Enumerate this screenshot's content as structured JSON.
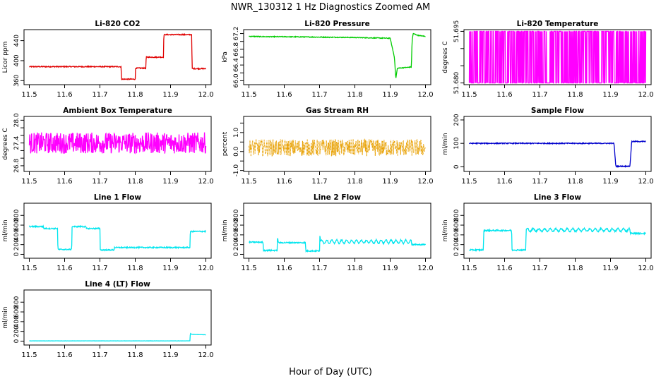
{
  "figure": {
    "title": "NWR_130312  1 Hz Diagnostics Zoomed AM",
    "xlabel": "Hour of Day (UTC)"
  },
  "chart_data": [
    {
      "id": "co2",
      "type": "line",
      "title": "Li-820 CO2",
      "xlabel": "",
      "ylabel": "Licor ppm",
      "color": "#e00000",
      "xlim": [
        11.485,
        12.015
      ],
      "ylim": [
        352,
        462
      ],
      "xticks": [
        11.5,
        11.6,
        11.7,
        11.8,
        11.9,
        12.0
      ],
      "yticks": [
        360,
        400,
        440
      ],
      "x": [
        11.5,
        11.76,
        11.761,
        11.8,
        11.801,
        11.83,
        11.831,
        11.88,
        11.881,
        11.96,
        11.961,
        12.0
      ],
      "y": [
        388,
        388,
        363,
        363,
        385,
        385,
        407,
        407,
        452,
        452,
        384,
        384
      ],
      "noise": 1
    },
    {
      "id": "pressure",
      "type": "line",
      "title": "Li-820 Pressure",
      "xlabel": "",
      "ylabel": "kPa",
      "color": "#00cc00",
      "xlim": [
        11.485,
        12.015
      ],
      "ylim": [
        65.9,
        67.3
      ],
      "xticks": [
        11.5,
        11.6,
        11.7,
        11.8,
        11.9,
        12.0
      ],
      "yticks": [
        66.0,
        66.2,
        66.4,
        66.6,
        66.8,
        67.0,
        67.2
      ],
      "ytick_labels": [
        "66.0",
        "",
        "66.4",
        "",
        "66.8",
        "",
        "67.2"
      ],
      "x": [
        11.5,
        11.55,
        11.6,
        11.7,
        11.8,
        11.9,
        11.912,
        11.916,
        11.92,
        11.922,
        11.95,
        11.96,
        11.962,
        11.965,
        11.98,
        12.0
      ],
      "y": [
        67.13,
        67.12,
        67.12,
        67.11,
        67.1,
        67.08,
        66.6,
        66.05,
        66.3,
        66.32,
        66.34,
        66.35,
        67.0,
        67.2,
        67.15,
        67.13
      ],
      "noise": 0.01
    },
    {
      "id": "li820temp",
      "type": "line",
      "title": "Li-820 Temperature",
      "xlabel": "",
      "ylabel": "degrees C",
      "color": "#ff00ff",
      "xlim": [
        11.485,
        12.015
      ],
      "ylim": [
        51.6795,
        51.6955
      ],
      "xticks": [
        11.5,
        11.6,
        11.7,
        11.8,
        11.9,
        12.0
      ],
      "yticks": [
        51.68,
        51.685,
        51.69,
        51.695
      ],
      "ytick_labels": [
        "51.680",
        "",
        "",
        "51.695"
      ],
      "x": [
        11.5,
        12.0
      ],
      "y": [
        51.68,
        51.695
      ],
      "pattern": "binary"
    },
    {
      "id": "ambient",
      "type": "line",
      "title": "Ambient Box Temperature",
      "xlabel": "",
      "ylabel": "degrees C",
      "color": "#ff00ff",
      "xlim": [
        11.485,
        12.015
      ],
      "ylim": [
        26.65,
        28.1
      ],
      "xticks": [
        11.5,
        11.6,
        11.7,
        11.8,
        11.9,
        12.0
      ],
      "yticks": [
        26.8,
        27.0,
        27.2,
        27.4,
        27.6,
        27.8,
        28.0
      ],
      "ytick_labels": [
        "26.8",
        "",
        "",
        "27.4",
        "",
        "",
        "28.0"
      ],
      "x": [
        11.5,
        12.0
      ],
      "y": [
        27.4,
        27.4
      ],
      "noise": 0.28
    },
    {
      "id": "rh",
      "type": "line",
      "title": "Gas Stream RH",
      "xlabel": "",
      "ylabel": "percent",
      "color": "#e8a000",
      "xlim": [
        11.485,
        12.015
      ],
      "ylim": [
        -1.05,
        1.85
      ],
      "xticks": [
        11.5,
        11.6,
        11.7,
        11.8,
        11.9,
        12.0
      ],
      "yticks": [
        -1.0,
        -0.5,
        0.0,
        0.5,
        1.0,
        1.5
      ],
      "ytick_labels": [
        "-1.0",
        "",
        "0.0",
        "",
        "1.0",
        ""
      ],
      "x": [
        11.5,
        12.0
      ],
      "y": [
        0.2,
        0.2
      ],
      "noise": 0.45
    },
    {
      "id": "sample",
      "type": "line",
      "title": "Sample Flow",
      "xlabel": "",
      "ylabel": "ml/min",
      "color": "#0000cc",
      "xlim": [
        11.485,
        12.015
      ],
      "ylim": [
        -20,
        215
      ],
      "xticks": [
        11.5,
        11.6,
        11.7,
        11.8,
        11.9,
        12.0
      ],
      "yticks": [
        0,
        100,
        200
      ],
      "x": [
        11.5,
        11.91,
        11.915,
        11.955,
        11.96,
        12.0
      ],
      "y": [
        100,
        100,
        2,
        2,
        108,
        108
      ],
      "noise": 2
    },
    {
      "id": "line1",
      "type": "line",
      "title": "Line 1 Flow",
      "xlabel": "",
      "ylabel": "ml/min",
      "color": "#00e5ee",
      "xlim": [
        11.485,
        12.015
      ],
      "ylim": [
        -80,
        1050
      ],
      "xticks": [
        11.5,
        11.6,
        11.7,
        11.8,
        11.9,
        12.0
      ],
      "yticks": [
        0,
        200,
        400,
        600,
        800
      ],
      "x": [
        11.5,
        11.54,
        11.541,
        11.58,
        11.581,
        11.62,
        11.621,
        11.66,
        11.661,
        11.7,
        11.701,
        11.74,
        11.741,
        11.955,
        11.956,
        12.0
      ],
      "y": [
        570,
        570,
        530,
        530,
        100,
        100,
        570,
        570,
        530,
        530,
        90,
        90,
        140,
        140,
        470,
        470
      ],
      "noise": 12
    },
    {
      "id": "line2",
      "type": "line",
      "title": "Line 2 Flow",
      "xlabel": "",
      "ylabel": "ml/min",
      "color": "#00e5ee",
      "xlim": [
        11.485,
        12.015
      ],
      "ylim": [
        -80,
        1050
      ],
      "xticks": [
        11.5,
        11.6,
        11.7,
        11.8,
        11.9,
        12.0
      ],
      "yticks": [
        0,
        200,
        400,
        600,
        800
      ],
      "x": [
        11.5,
        11.54,
        11.541,
        11.58,
        11.581,
        11.583,
        11.66,
        11.661,
        11.7,
        11.701,
        11.703,
        11.96,
        11.961,
        12.0
      ],
      "y": [
        250,
        250,
        80,
        80,
        380,
        240,
        240,
        70,
        70,
        380,
        260,
        260,
        200,
        200
      ],
      "noise": 12,
      "wave": {
        "from": 11.703,
        "to": 11.96,
        "amp": 35,
        "period": 0.014
      }
    },
    {
      "id": "line3",
      "type": "line",
      "title": "Line 3 Flow",
      "xlabel": "",
      "ylabel": "ml/min",
      "color": "#00e5ee",
      "xlim": [
        11.485,
        12.015
      ],
      "ylim": [
        -80,
        1050
      ],
      "xticks": [
        11.5,
        11.6,
        11.7,
        11.8,
        11.9,
        12.0
      ],
      "yticks": [
        0,
        200,
        400,
        600,
        800
      ],
      "x": [
        11.5,
        11.54,
        11.541,
        11.62,
        11.621,
        11.66,
        11.661,
        11.955,
        11.956,
        12.0
      ],
      "y": [
        90,
        90,
        490,
        490,
        90,
        90,
        500,
        500,
        430,
        430
      ],
      "noise": 14,
      "wave": {
        "from": 11.661,
        "to": 11.955,
        "amp": 30,
        "period": 0.016
      }
    },
    {
      "id": "line4",
      "type": "line",
      "title": "Line 4 (LT) Flow",
      "xlabel": "",
      "ylabel": "ml/min",
      "color": "#00e5ee",
      "xlim": [
        11.485,
        12.015
      ],
      "ylim": [
        -80,
        1050
      ],
      "xticks": [
        11.5,
        11.6,
        11.7,
        11.8,
        11.9,
        12.0
      ],
      "yticks": [
        0,
        200,
        400,
        600,
        800
      ],
      "x": [
        11.5,
        11.955,
        11.956,
        11.96,
        12.0
      ],
      "y": [
        5,
        5,
        160,
        140,
        130
      ],
      "noise": 2
    }
  ]
}
